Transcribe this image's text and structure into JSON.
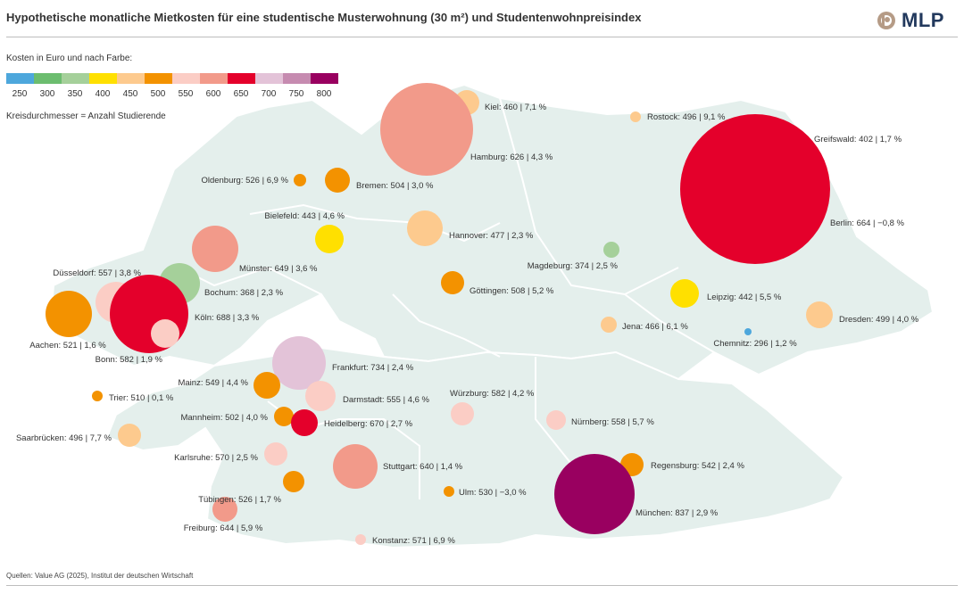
{
  "header": {
    "title": "Hypothetische monatliche Mietkosten für eine studentische Musterwohnung (30 m²) und Studentenwohnpreisindex",
    "logo_text": "MLP"
  },
  "legend": {
    "color_label": "Kosten in Euro und nach Farbe:",
    "size_label": "Kreisdurchmesser = Anzahl Studierende",
    "scale": [
      {
        "value": "250",
        "color": "#4da7dc"
      },
      {
        "value": "300",
        "color": "#6cbd6f"
      },
      {
        "value": "350",
        "color": "#a5d09a"
      },
      {
        "value": "400",
        "color": "#ffe000"
      },
      {
        "value": "450",
        "color": "#fdca8e"
      },
      {
        "value": "500",
        "color": "#f39200"
      },
      {
        "value": "550",
        "color": "#fbcdc5"
      },
      {
        "value": "600",
        "color": "#f29a8a"
      },
      {
        "value": "650",
        "color": "#e4002b"
      },
      {
        "value": "700",
        "color": "#e3c3d8"
      },
      {
        "value": "750",
        "color": "#c68bb0"
      },
      {
        "value": "800",
        "color": "#990060"
      }
    ]
  },
  "cities": [
    {
      "label": "Kiel: 460 | 7,1 %",
      "color": "#fdca8e"
    },
    {
      "label": "Rostock: 496 | 9,1 %",
      "color": "#fdca8e"
    },
    {
      "label": "Greifswald: 402 | 1,7 %",
      "color": "#ffe000"
    },
    {
      "label": "Hamburg: 626 | 4,3 %",
      "color": "#f29a8a"
    },
    {
      "label": "Berlin: 664 | −0,8 %",
      "color": "#e4002b"
    },
    {
      "label": "Oldenburg: 526 | 6,9 %",
      "color": "#f39200"
    },
    {
      "label": "Bremen: 504 | 3,0 %",
      "color": "#f39200"
    },
    {
      "label": "Bielefeld: 443 | 4,6 %",
      "color": "#ffe000"
    },
    {
      "label": "Hannover: 477 | 2,3 %",
      "color": "#fdca8e"
    },
    {
      "label": "Münster: 649 | 3,6 %",
      "color": "#f29a8a"
    },
    {
      "label": "Magdeburg: 374 | 2,5 %",
      "color": "#a5d09a"
    },
    {
      "label": "Düsseldorf: 557 | 3,8 %",
      "color": "#fbcdc5"
    },
    {
      "label": "Bochum: 368 | 2,3 %",
      "color": "#a5d09a"
    },
    {
      "label": "Göttingen: 508 | 5,2 %",
      "color": "#f39200"
    },
    {
      "label": "Leipzig: 442 | 5,5 %",
      "color": "#ffe000"
    },
    {
      "label": "Köln: 688 | 3,3 %",
      "color": "#e4002b"
    },
    {
      "label": "Aachen: 521 | 1,6 %",
      "color": "#f39200"
    },
    {
      "label": "Bonn: 582 | 1,9 %",
      "color": "#fbcdc5"
    },
    {
      "label": "Jena: 466 | 6,1 %",
      "color": "#fdca8e"
    },
    {
      "label": "Dresden: 499 | 4,0 %",
      "color": "#fdca8e"
    },
    {
      "label": "Chemnitz: 296 | 1,2 %",
      "color": "#4da7dc"
    },
    {
      "label": "Frankfurt: 734 | 2,4 %",
      "color": "#e3c3d8"
    },
    {
      "label": "Mainz: 549 | 4,4 %",
      "color": "#f39200"
    },
    {
      "label": "Trier: 510 | 0,1 %",
      "color": "#f39200"
    },
    {
      "label": "Darmstadt: 555 | 4,6 %",
      "color": "#fbcdc5"
    },
    {
      "label": "Würzburg: 582 | 4,2 %",
      "color": "#fbcdc5"
    },
    {
      "label": "Mannheim: 502 | 4,0 %",
      "color": "#f39200"
    },
    {
      "label": "Heidelberg: 670 | 2,7 %",
      "color": "#e4002b"
    },
    {
      "label": "Nürnberg: 558 | 5,7 %",
      "color": "#fbcdc5"
    },
    {
      "label": "Saarbrücken: 496 | 7,7 %",
      "color": "#fdca8e"
    },
    {
      "label": "Karlsruhe: 570 | 2,5 %",
      "color": "#fbcdc5"
    },
    {
      "label": "Stuttgart: 640 | 1,4 %",
      "color": "#f29a8a"
    },
    {
      "label": "Regensburg: 542 | 2,4 %",
      "color": "#f39200"
    },
    {
      "label": "Tübingen: 526 | 1,7 %",
      "color": "#f39200"
    },
    {
      "label": "Ulm: 530 | −3,0 %",
      "color": "#f39200"
    },
    {
      "label": "München: 837 | 2,9 %",
      "color": "#990060"
    },
    {
      "label": "Freiburg: 644 | 5,9 %",
      "color": "#f29a8a"
    },
    {
      "label": "Konstanz: 571 | 6,9 %",
      "color": "#fbcdc5"
    }
  ],
  "source": "Quellen: Value AG (2025), Institut der deutschen Wirtschaft"
}
